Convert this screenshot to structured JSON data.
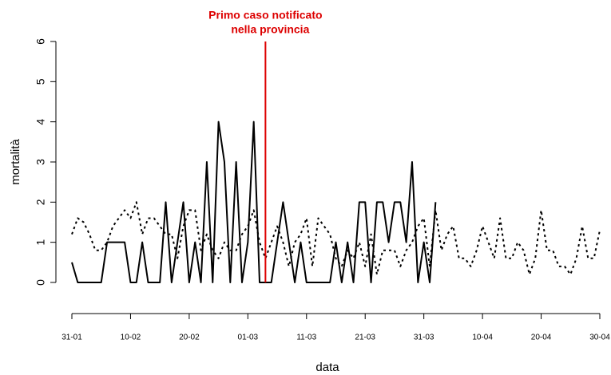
{
  "chart_data": {
    "type": "line",
    "xlabel": "data",
    "ylabel": "mortalità",
    "x": [
      "31-01",
      "01-02",
      "02-02",
      "03-02",
      "04-02",
      "05-02",
      "06-02",
      "07-02",
      "08-02",
      "09-02",
      "10-02",
      "11-02",
      "12-02",
      "13-02",
      "14-02",
      "15-02",
      "16-02",
      "17-02",
      "18-02",
      "19-02",
      "20-02",
      "21-02",
      "22-02",
      "23-02",
      "24-02",
      "25-02",
      "26-02",
      "27-02",
      "28-02",
      "29-02",
      "01-03",
      "02-03",
      "03-03",
      "04-03",
      "05-03",
      "06-03",
      "07-03",
      "08-03",
      "09-03",
      "10-03",
      "11-03",
      "12-03",
      "13-03",
      "14-03",
      "15-03",
      "16-03",
      "17-03",
      "18-03",
      "19-03",
      "20-03",
      "21-03",
      "22-03",
      "23-03",
      "24-03",
      "25-03",
      "26-03",
      "27-03",
      "28-03",
      "29-03",
      "30-03",
      "31-03",
      "01-04",
      "02-04",
      "03-04",
      "04-04",
      "05-04",
      "06-04",
      "07-04",
      "08-04",
      "09-04",
      "10-04",
      "11-04",
      "12-04",
      "13-04",
      "14-04",
      "15-04",
      "16-04",
      "17-04",
      "18-04",
      "19-04",
      "20-04",
      "21-04",
      "22-04",
      "23-04",
      "24-04",
      "25-04",
      "26-04",
      "27-04",
      "28-04",
      "29-04",
      "30-04"
    ],
    "series": [
      {
        "color": "#000000",
        "dash": "solid",
        "values": [
          0.5,
          0,
          0,
          0,
          0,
          0,
          1,
          1,
          1,
          1,
          0,
          0,
          1,
          0,
          0,
          0,
          2,
          0,
          1,
          2,
          0,
          1,
          0,
          3,
          0,
          4,
          3,
          0,
          3,
          0,
          1,
          4,
          0,
          0,
          0,
          1,
          2,
          1,
          0,
          1,
          0,
          0,
          0,
          0,
          0,
          1,
          0,
          1,
          0,
          2,
          2,
          0,
          2,
          2,
          1,
          2,
          2,
          1,
          3,
          0,
          1,
          0,
          2,
          null,
          null,
          null,
          null,
          null,
          null,
          null,
          null,
          null,
          null,
          null,
          null,
          null,
          null,
          null,
          null,
          null,
          null,
          null,
          null,
          null,
          null,
          null,
          null,
          null,
          null,
          null,
          null
        ]
      },
      {
        "color": "#000000",
        "dash": "dotted",
        "values": [
          1.2,
          1.6,
          1.5,
          1.2,
          0.8,
          0.8,
          1.0,
          1.4,
          1.6,
          1.8,
          1.6,
          2.0,
          1.2,
          1.6,
          1.6,
          1.4,
          1.2,
          1.2,
          0.6,
          1.4,
          1.8,
          1.8,
          0.8,
          1.2,
          0.8,
          0.6,
          1.0,
          0.8,
          0.8,
          1.2,
          1.4,
          1.8,
          1.0,
          0.6,
          1.0,
          1.4,
          1.0,
          0.4,
          1.0,
          1.2,
          1.6,
          0.4,
          1.6,
          1.4,
          1.2,
          0.6,
          0.4,
          0.8,
          0.6,
          1.0,
          0.4,
          1.2,
          0.2,
          0.8,
          0.8,
          0.8,
          0.4,
          0.8,
          1.0,
          1.4,
          1.6,
          0.4,
          1.8,
          0.8,
          1.2,
          1.4,
          0.6,
          0.6,
          0.4,
          0.8,
          1.4,
          1.0,
          0.6,
          1.6,
          0.6,
          0.6,
          1.0,
          0.8,
          0.2,
          0.6,
          1.8,
          0.8,
          0.8,
          0.4,
          0.4,
          0.2,
          0.6,
          1.4,
          0.6,
          0.6,
          1.3
        ]
      }
    ],
    "xticks": [
      "31-01",
      "10-02",
      "20-02",
      "01-03",
      "11-03",
      "21-03",
      "31-03",
      "10-04",
      "20-04",
      "30-04"
    ],
    "ylim": [
      0,
      6
    ],
    "yticks": [
      0,
      1,
      2,
      3,
      4,
      5,
      6
    ],
    "grid": false,
    "annotation": {
      "x": "04-03",
      "color": "#dd0000",
      "text": [
        "Primo caso notificato",
        "nella provincia"
      ]
    }
  }
}
